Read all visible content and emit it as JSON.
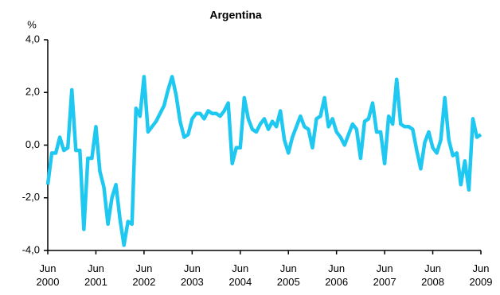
{
  "chart_data": {
    "type": "line",
    "title": "Argentina",
    "y_label": "%",
    "categories": [
      "Jun 2000",
      null,
      null,
      null,
      null,
      null,
      null,
      null,
      null,
      null,
      null,
      null,
      "Jun 2001",
      null,
      null,
      null,
      null,
      null,
      null,
      null,
      null,
      null,
      null,
      null,
      "Jun 2002",
      null,
      null,
      null,
      null,
      null,
      null,
      null,
      null,
      null,
      null,
      null,
      "Jun 2003",
      null,
      null,
      null,
      null,
      null,
      null,
      null,
      null,
      null,
      null,
      null,
      "Jun 2004",
      null,
      null,
      null,
      null,
      null,
      null,
      null,
      null,
      null,
      null,
      null,
      "Jun 2005",
      null,
      null,
      null,
      null,
      null,
      null,
      null,
      null,
      null,
      null,
      null,
      "Jun 2006",
      null,
      null,
      null,
      null,
      null,
      null,
      null,
      null,
      null,
      null,
      null,
      "Jun 2007",
      null,
      null,
      null,
      null,
      null,
      null,
      null,
      null,
      null,
      null,
      null,
      "Jun 2008",
      null,
      null,
      null,
      null,
      null,
      null,
      null,
      null,
      null,
      null,
      null,
      "Jun 2009"
    ],
    "values": [
      -1.5,
      -0.3,
      -0.3,
      0.3,
      -0.2,
      -0.1,
      2.1,
      -0.2,
      -0.2,
      -3.2,
      -0.5,
      -0.5,
      0.7,
      -1.0,
      -1.6,
      -3.0,
      -2.0,
      -1.5,
      -2.8,
      -3.8,
      -2.9,
      -3.0,
      1.4,
      1.1,
      2.6,
      0.5,
      0.7,
      0.9,
      1.2,
      1.5,
      2.1,
      2.6,
      1.9,
      0.9,
      0.3,
      0.4,
      1.0,
      1.2,
      1.2,
      1.0,
      1.3,
      1.2,
      1.2,
      1.1,
      1.3,
      1.6,
      -0.7,
      -0.1,
      -0.1,
      1.8,
      1.0,
      0.6,
      0.5,
      0.8,
      1.0,
      0.6,
      0.9,
      0.7,
      1.3,
      0.2,
      -0.3,
      0.3,
      0.7,
      1.1,
      0.7,
      0.6,
      -0.1,
      1.0,
      1.1,
      1.8,
      0.7,
      1.0,
      0.5,
      0.3,
      0.0,
      0.4,
      0.8,
      0.6,
      -0.5,
      0.9,
      1.0,
      1.6,
      0.5,
      0.5,
      -0.7,
      1.1,
      0.8,
      2.5,
      0.8,
      0.7,
      0.7,
      0.6,
      -0.2,
      -0.9,
      0.1,
      0.5,
      -0.1,
      -0.3,
      0.2,
      1.8,
      0.2,
      -0.4,
      -0.3,
      -1.5,
      -0.6,
      -1.7,
      1.0,
      0.3,
      0.4
    ],
    "color": "#1ec8f0",
    "ylim": [
      -4,
      4
    ],
    "yticks": [
      {
        "value": -4,
        "label": "-4,0"
      },
      {
        "value": -2,
        "label": "-2,0"
      },
      {
        "value": 0,
        "label": "0,0"
      },
      {
        "value": 2,
        "label": "2,0"
      },
      {
        "value": 4,
        "label": "4,0"
      }
    ]
  }
}
